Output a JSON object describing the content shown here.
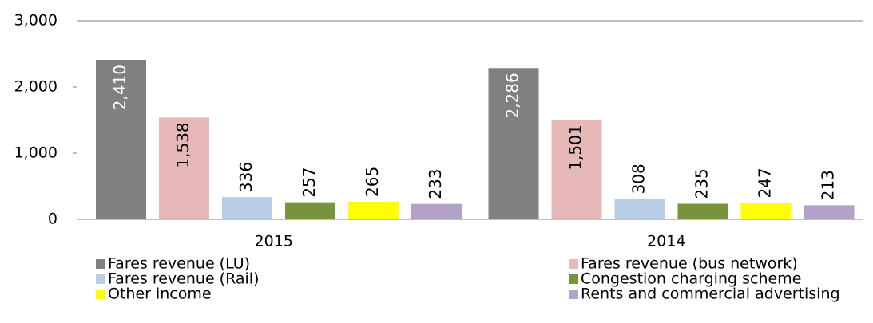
{
  "chart_data": {
    "type": "bar",
    "categories": [
      "2015",
      "2014"
    ],
    "series": [
      {
        "name": "Fares revenue (LU)",
        "color": "#808080",
        "label_color": "#ffffff",
        "values": [
          2410,
          2286
        ],
        "value_labels": [
          "2,410",
          "2,286"
        ]
      },
      {
        "name": "Fares revenue (bus network)",
        "color": "#e6b9b8",
        "label_color": "#000000",
        "values": [
          1538,
          1501
        ],
        "value_labels": [
          "1,538",
          "1,501"
        ]
      },
      {
        "name": "Fares revenue (Rail)",
        "color": "#b9cde5",
        "label_color": "#000000",
        "values": [
          336,
          308
        ]
      },
      {
        "name": "Congestion charging scheme",
        "color": "#77933c",
        "label_color": "#000000",
        "values": [
          257,
          235
        ]
      },
      {
        "name": "Other income",
        "color": "#ffff00",
        "label_color": "#000000",
        "values": [
          265,
          247
        ]
      },
      {
        "name": "Rents and commercial advertising",
        "color": "#b3a2c7",
        "label_color": "#000000",
        "values": [
          233,
          213
        ]
      }
    ],
    "ylim": [
      0,
      3000
    ],
    "yticks": [
      0,
      {
        "value": 1000,
        "label": "1,000"
      },
      {
        "value": 2000,
        "label": "2,000"
      },
      {
        "value": 3000,
        "label": "3,000"
      }
    ],
    "legend": "bottom"
  }
}
